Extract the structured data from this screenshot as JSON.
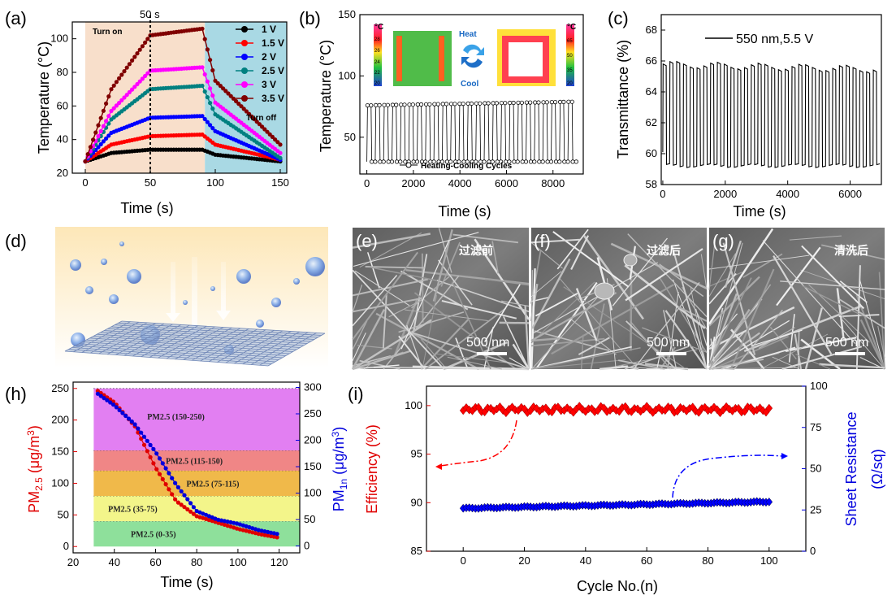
{
  "chart_data": [
    {
      "panel": "(a)",
      "type": "line",
      "xlabel": "Time (s)",
      "ylabel": "Temperature (°C)",
      "xlim": [
        -10,
        155
      ],
      "ylim": [
        20,
        110
      ],
      "xticks": [
        0,
        50,
        100,
        150
      ],
      "yticks": [
        20,
        40,
        60,
        80,
        100
      ],
      "annotations": {
        "top": "50 s",
        "on": "Turn on",
        "off": "Turn off"
      },
      "shading": [
        {
          "from": 0,
          "to": 92,
          "color": "#f8dfcb"
        },
        {
          "from": 92,
          "to": 155,
          "color": "#a9d9e4"
        }
      ],
      "vline": 50,
      "series": [
        {
          "name": "1 V",
          "color": "#000000",
          "values": [
            [
              0,
              27
            ],
            [
              20,
              32
            ],
            [
              50,
              34
            ],
            [
              90,
              34
            ],
            [
              100,
              31
            ],
            [
              150,
              27
            ]
          ]
        },
        {
          "name": "1.5 V",
          "color": "#ff0000",
          "values": [
            [
              0,
              27
            ],
            [
              20,
              37
            ],
            [
              50,
              42
            ],
            [
              90,
              43
            ],
            [
              100,
              37
            ],
            [
              150,
              28
            ]
          ]
        },
        {
          "name": "2 V",
          "color": "#0000ff",
          "values": [
            [
              0,
              27
            ],
            [
              20,
              44
            ],
            [
              50,
              53
            ],
            [
              90,
              54
            ],
            [
              100,
              45
            ],
            [
              150,
              28
            ]
          ]
        },
        {
          "name": "2.5 V",
          "color": "#008080",
          "values": [
            [
              0,
              27
            ],
            [
              20,
              52
            ],
            [
              50,
              70
            ],
            [
              90,
              72
            ],
            [
              100,
              55
            ],
            [
              150,
              29
            ]
          ]
        },
        {
          "name": "3 V",
          "color": "#ff00ff",
          "values": [
            [
              0,
              27
            ],
            [
              20,
              57
            ],
            [
              50,
              81
            ],
            [
              90,
              83
            ],
            [
              100,
              62
            ],
            [
              150,
              32
            ]
          ]
        },
        {
          "name": "3.5 V",
          "color": "#800000",
          "values": [
            [
              0,
              27
            ],
            [
              20,
              70
            ],
            [
              50,
              102
            ],
            [
              90,
              106
            ],
            [
              100,
              75
            ],
            [
              150,
              37
            ]
          ]
        }
      ]
    },
    {
      "panel": "(b)",
      "type": "line",
      "xlabel": "Time (s)",
      "ylabel": "Temperature (°C)",
      "xlim": [
        -300,
        9300
      ],
      "ylim": [
        20,
        150
      ],
      "xticks": [
        0,
        2000,
        4000,
        6000,
        8000
      ],
      "yticks": [
        50,
        100,
        150
      ],
      "legend": "Heating-Cooling Cycles",
      "cycles": 25,
      "high": 76,
      "low": 30,
      "x_end": 9000,
      "inset": {
        "heat": "Heat",
        "cool": "Cool",
        "unit": "°C",
        "scale_left": [
          "28",
          "26",
          "24",
          "22",
          "20"
        ],
        "scale_right": [
          "65",
          "50",
          "35",
          "20"
        ]
      }
    },
    {
      "panel": "(c)",
      "type": "line",
      "xlabel": "Time (s)",
      "ylabel": "Transmittance (%)",
      "xlim": [
        -50,
        7000
      ],
      "ylim": [
        58,
        69
      ],
      "xticks": [
        0,
        2000,
        4000,
        6000
      ],
      "yticks": [
        58,
        60,
        62,
        64,
        66,
        68
      ],
      "legend": "550 nm,5.5 V",
      "cycles": 32,
      "high": 65.8,
      "low": 59.2,
      "x_end": 6950
    },
    {
      "panel": "(h)",
      "type": "scatter",
      "xlabel": "Time (s)",
      "ylabel_left": "PM2.5 (μg/m3)",
      "ylabel_right": "PM1n (μg/m3)",
      "xlim": [
        20,
        130
      ],
      "ylim_left": [
        -10,
        260
      ],
      "ylim_right": [
        -13,
        310
      ],
      "xticks": [
        20,
        40,
        60,
        80,
        100,
        120
      ],
      "yticks_left": [
        0,
        50,
        100,
        150,
        200,
        250
      ],
      "yticks_right": [
        0,
        50,
        100,
        150,
        200,
        250,
        300
      ],
      "bands": [
        {
          "label": "PM2.5 (0-35)",
          "from": 0,
          "to": 40,
          "color": "#8ee09b"
        },
        {
          "label": "PM2.5 (35-75)",
          "from": 40,
          "to": 80,
          "color": "#f3f58a"
        },
        {
          "label": "PM2.5 (75-115)",
          "from": 80,
          "to": 120,
          "color": "#f0b94a"
        },
        {
          "label": "PM2.5 (115-150)",
          "from": 120,
          "to": 152,
          "color": "#f08686"
        },
        {
          "label": "PM2.5 (150-250)",
          "from": 152,
          "to": 250,
          "color": "#e27ff2"
        }
      ],
      "series": [
        {
          "name": "PM2.5",
          "color": "#e00000",
          "axis": "left",
          "values": [
            [
              32,
              246
            ],
            [
              40,
              228
            ],
            [
              50,
              190
            ],
            [
              60,
              125
            ],
            [
              70,
              72
            ],
            [
              80,
              48
            ],
            [
              90,
              38
            ],
            [
              100,
              28
            ],
            [
              110,
              20
            ],
            [
              120,
              14
            ]
          ]
        },
        {
          "name": "PM1n",
          "color": "#0000dd",
          "axis": "right",
          "values": [
            [
              32,
              288
            ],
            [
              40,
              266
            ],
            [
              50,
              230
            ],
            [
              60,
              178
            ],
            [
              70,
              116
            ],
            [
              80,
              66
            ],
            [
              90,
              50
            ],
            [
              100,
              42
            ],
            [
              110,
              30
            ],
            [
              120,
              22
            ]
          ]
        }
      ]
    },
    {
      "panel": "(i)",
      "type": "scatter",
      "xlabel": "Cycle No.(n)",
      "ylabel_left": "Efficiency (%)",
      "ylabel_right": "Sheet Resistance (Ω/sq)",
      "xlim": [
        -12,
        112
      ],
      "ylim_left": [
        85,
        102
      ],
      "ylim_right": [
        0,
        100
      ],
      "xticks": [
        0,
        20,
        40,
        60,
        80,
        100
      ],
      "yticks_left": [
        85,
        90,
        95,
        100
      ],
      "yticks_right": [
        0,
        25,
        50,
        75,
        100
      ],
      "series": [
        {
          "name": "Efficiency",
          "color": "#ff0000",
          "axis": "left",
          "mean": 99.6,
          "n": 100
        },
        {
          "name": "Sheet Resistance",
          "color": "#0000ff",
          "axis": "right",
          "start": 26,
          "end": 30,
          "n": 100
        }
      ]
    }
  ],
  "panels": {
    "a": "(a)",
    "b": "(b)",
    "c": "(c)",
    "d": "(d)",
    "e": "(e)",
    "f": "(f)",
    "g": "(g)",
    "h": "(h)",
    "i": "(i)"
  },
  "sem": {
    "e": {
      "caption": "过滤前",
      "scale": "500 nm"
    },
    "f": {
      "caption": "过滤后",
      "scale": "500 nm"
    },
    "g": {
      "caption": "清洗后",
      "scale": "500 nm"
    }
  },
  "axis_labels": {
    "a_x": "Time (s)",
    "a_y": "Temperature (",
    "a_y_unit": "°C)",
    "b_x": "Time (s)",
    "b_y": "Temperature (",
    "b_y_unit": "°C)",
    "c_x": "Time (s)",
    "c_y": "Transmittance (%)",
    "h_x": "Time (s)",
    "h_yl_pre": "PM",
    "h_yl_sub": "2.5",
    "h_yl_post": " (μg/m",
    "h_yl_sup": "3",
    "h_yl_end": ")",
    "h_yr_pre": "PM",
    "h_yr_sub": "1n",
    "h_yr_post": " (μg/m",
    "h_yr_sup": "3",
    "h_yr_end": ")",
    "i_x": "Cycle No.(n)",
    "i_yl": "Efficiency (%)",
    "i_yr1": "Sheet Resistance",
    "i_yr2": "(Ω/sq)"
  }
}
